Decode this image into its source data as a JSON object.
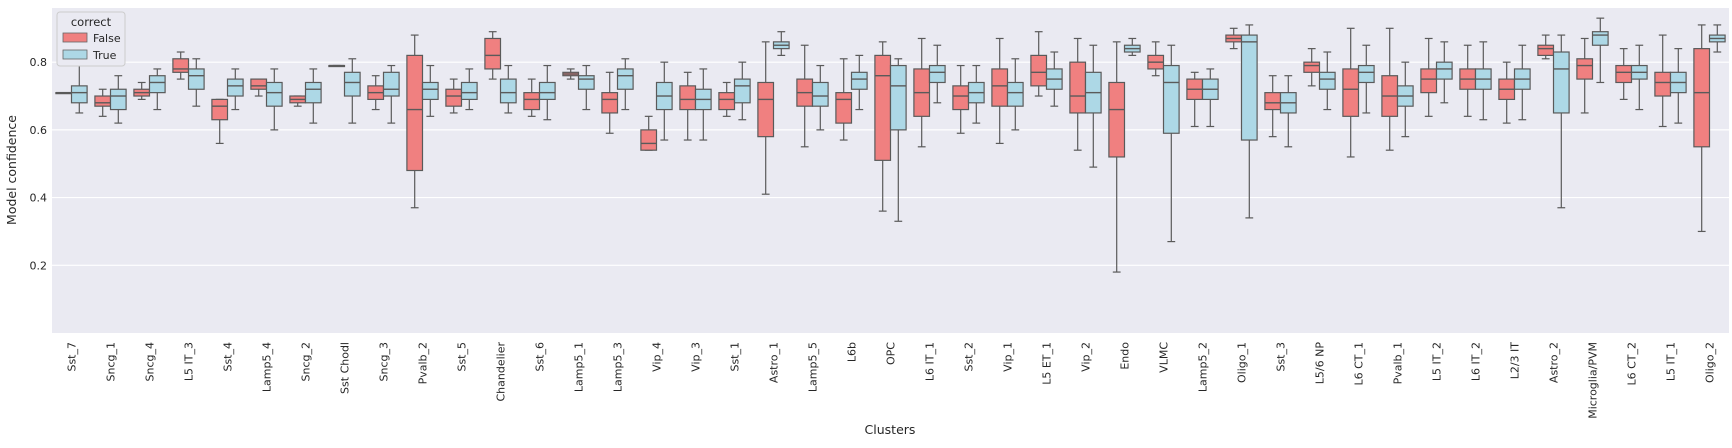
{
  "chart_data": {
    "type": "box",
    "title": "",
    "xlabel": "Clusters",
    "ylabel": "Model confidence",
    "ylim": [
      0.0,
      0.96
    ],
    "yticks": [
      0.2,
      0.4,
      0.6,
      0.8
    ],
    "ytick_labels": [
      "0.2",
      "0.4",
      "0.6",
      "0.8"
    ],
    "grid": true,
    "legend": {
      "title": "correct",
      "placement": "top-left",
      "entries": [
        {
          "label": "False",
          "color": "#f08080"
        },
        {
          "label": "True",
          "color": "#add8e6"
        }
      ]
    },
    "categories": [
      "Sst_7",
      "Sncg_1",
      "Sncg_4",
      "L5 IT_3",
      "Sst_4",
      "Lamp5_4",
      "Sncg_2",
      "Sst Chodl",
      "Sncg_3",
      "Pvalb_2",
      "Sst_5",
      "Chandelier",
      "Sst_6",
      "Lamp5_1",
      "Lamp5_3",
      "Vip_4",
      "Vip_3",
      "Sst_1",
      "Astro_1",
      "Lamp5_5",
      "L6b",
      "OPC",
      "L6 IT_1",
      "Sst_2",
      "Vip_1",
      "L5 ET_1",
      "Vip_2",
      "Endo",
      "VLMC",
      "Lamp5_2",
      "Oligo_1",
      "Sst_3",
      "L5/6 NP",
      "L6 CT_1",
      "Pvalb_1",
      "L5 IT_2",
      "L6 IT_2",
      "L2/3 IT",
      "Astro_2",
      "Microglia/PVM",
      "L6 CT_2",
      "L5 IT_1",
      "Oligo_2"
    ],
    "series": [
      {
        "name": "False",
        "color": "#f08080",
        "boxes": [
          [
            0.71,
            0.71,
            0.71,
            0.71,
            0.71
          ],
          [
            0.64,
            0.67,
            0.68,
            0.7,
            0.72
          ],
          [
            0.69,
            0.7,
            0.71,
            0.72,
            0.74
          ],
          [
            0.75,
            0.77,
            0.78,
            0.81,
            0.83
          ],
          [
            0.56,
            0.63,
            0.67,
            0.69,
            0.69
          ],
          [
            0.7,
            0.72,
            0.73,
            0.75,
            0.75
          ],
          [
            0.67,
            0.68,
            0.69,
            0.7,
            0.7
          ],
          [
            0.79,
            0.79,
            0.79,
            0.79,
            0.79
          ],
          [
            0.66,
            0.69,
            0.71,
            0.73,
            0.76
          ],
          [
            0.37,
            0.48,
            0.66,
            0.82,
            0.88
          ],
          [
            0.65,
            0.67,
            0.7,
            0.72,
            0.75
          ],
          [
            0.75,
            0.78,
            0.82,
            0.87,
            0.89
          ],
          [
            0.64,
            0.66,
            0.69,
            0.71,
            0.75
          ],
          [
            0.75,
            0.76,
            0.765,
            0.77,
            0.78
          ],
          [
            0.59,
            0.65,
            0.69,
            0.71,
            0.77
          ],
          [
            0.54,
            0.54,
            0.56,
            0.6,
            0.64
          ],
          [
            0.57,
            0.66,
            0.69,
            0.73,
            0.77
          ],
          [
            0.64,
            0.66,
            0.69,
            0.71,
            0.74
          ],
          [
            0.41,
            0.58,
            0.69,
            0.74,
            0.86
          ],
          [
            0.55,
            0.67,
            0.71,
            0.75,
            0.85
          ],
          [
            0.57,
            0.62,
            0.69,
            0.71,
            0.81
          ],
          [
            0.36,
            0.51,
            0.76,
            0.82,
            0.86
          ],
          [
            0.55,
            0.64,
            0.71,
            0.78,
            0.87
          ],
          [
            0.59,
            0.66,
            0.7,
            0.73,
            0.79
          ],
          [
            0.56,
            0.67,
            0.73,
            0.78,
            0.87
          ],
          [
            0.7,
            0.73,
            0.77,
            0.82,
            0.89
          ],
          [
            0.54,
            0.65,
            0.7,
            0.8,
            0.87
          ],
          [
            0.18,
            0.52,
            0.66,
            0.74,
            0.86
          ],
          [
            0.76,
            0.78,
            0.8,
            0.82,
            0.86
          ],
          [
            0.61,
            0.69,
            0.72,
            0.75,
            0.77
          ],
          [
            0.84,
            0.86,
            0.87,
            0.88,
            0.9
          ],
          [
            0.58,
            0.66,
            0.68,
            0.71,
            0.76
          ],
          [
            0.73,
            0.77,
            0.79,
            0.8,
            0.84
          ],
          [
            0.52,
            0.64,
            0.72,
            0.78,
            0.9
          ],
          [
            0.54,
            0.64,
            0.7,
            0.76,
            0.9
          ],
          [
            0.64,
            0.71,
            0.75,
            0.78,
            0.87
          ],
          [
            0.64,
            0.72,
            0.75,
            0.78,
            0.85
          ],
          [
            0.62,
            0.69,
            0.72,
            0.75,
            0.8
          ],
          [
            0.81,
            0.82,
            0.84,
            0.85,
            0.88
          ],
          [
            0.65,
            0.75,
            0.79,
            0.81,
            0.87
          ],
          [
            0.69,
            0.74,
            0.77,
            0.79,
            0.84
          ],
          [
            0.61,
            0.7,
            0.74,
            0.77,
            0.88
          ],
          [
            0.3,
            0.55,
            0.71,
            0.84,
            0.91
          ]
        ]
      },
      {
        "name": "True",
        "color": "#add8e6",
        "boxes": [
          [
            0.65,
            0.68,
            0.71,
            0.73,
            0.79
          ],
          [
            0.62,
            0.66,
            0.7,
            0.72,
            0.76
          ],
          [
            0.66,
            0.71,
            0.74,
            0.76,
            0.78
          ],
          [
            0.67,
            0.72,
            0.76,
            0.78,
            0.81
          ],
          [
            0.66,
            0.7,
            0.73,
            0.75,
            0.78
          ],
          [
            0.6,
            0.67,
            0.71,
            0.74,
            0.78
          ],
          [
            0.62,
            0.68,
            0.72,
            0.74,
            0.78
          ],
          [
            0.62,
            0.7,
            0.74,
            0.77,
            0.81
          ],
          [
            0.62,
            0.7,
            0.72,
            0.77,
            0.79
          ],
          [
            0.64,
            0.69,
            0.72,
            0.74,
            0.79
          ],
          [
            0.66,
            0.69,
            0.71,
            0.74,
            0.78
          ],
          [
            0.65,
            0.68,
            0.71,
            0.75,
            0.79
          ],
          [
            0.63,
            0.69,
            0.71,
            0.74,
            0.79
          ],
          [
            0.66,
            0.72,
            0.75,
            0.76,
            0.79
          ],
          [
            0.66,
            0.72,
            0.76,
            0.78,
            0.81
          ],
          [
            0.57,
            0.66,
            0.7,
            0.74,
            0.8
          ],
          [
            0.57,
            0.66,
            0.69,
            0.72,
            0.78
          ],
          [
            0.63,
            0.68,
            0.73,
            0.75,
            0.8
          ],
          [
            0.82,
            0.84,
            0.85,
            0.86,
            0.89
          ],
          [
            0.6,
            0.67,
            0.7,
            0.74,
            0.79
          ],
          [
            0.66,
            0.72,
            0.75,
            0.77,
            0.82
          ],
          [
            0.33,
            0.6,
            0.73,
            0.79,
            0.81
          ],
          [
            0.68,
            0.74,
            0.77,
            0.79,
            0.85
          ],
          [
            0.62,
            0.68,
            0.71,
            0.74,
            0.79
          ],
          [
            0.6,
            0.67,
            0.71,
            0.74,
            0.81
          ],
          [
            0.67,
            0.72,
            0.75,
            0.78,
            0.83
          ],
          [
            0.49,
            0.65,
            0.71,
            0.77,
            0.85
          ],
          [
            0.82,
            0.83,
            0.84,
            0.85,
            0.87
          ],
          [
            0.27,
            0.59,
            0.74,
            0.79,
            0.85
          ],
          [
            0.61,
            0.69,
            0.72,
            0.75,
            0.78
          ],
          [
            0.34,
            0.57,
            0.86,
            0.88,
            0.91
          ],
          [
            0.55,
            0.65,
            0.68,
            0.71,
            0.76
          ],
          [
            0.66,
            0.72,
            0.75,
            0.77,
            0.83
          ],
          [
            0.65,
            0.74,
            0.77,
            0.79,
            0.85
          ],
          [
            0.58,
            0.67,
            0.7,
            0.73,
            0.8
          ],
          [
            0.68,
            0.75,
            0.78,
            0.8,
            0.86
          ],
          [
            0.63,
            0.72,
            0.75,
            0.78,
            0.86
          ],
          [
            0.63,
            0.72,
            0.75,
            0.78,
            0.85
          ],
          [
            0.37,
            0.65,
            0.78,
            0.83,
            0.88
          ],
          [
            0.74,
            0.85,
            0.88,
            0.89,
            0.93
          ],
          [
            0.66,
            0.75,
            0.77,
            0.79,
            0.85
          ],
          [
            0.62,
            0.71,
            0.74,
            0.77,
            0.84
          ],
          [
            0.83,
            0.86,
            0.87,
            0.88,
            0.91
          ]
        ]
      }
    ]
  }
}
